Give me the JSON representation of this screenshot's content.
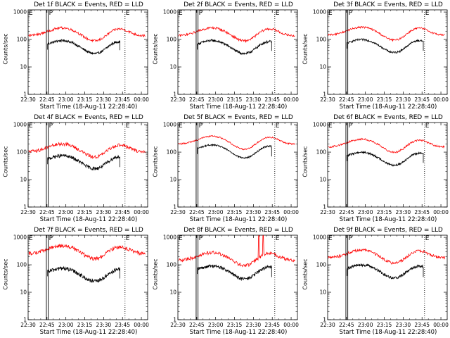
{
  "chart_data": {
    "type": "line",
    "layout": "3x3 grid",
    "xlabel": "Start Time (18-Aug-11 22:28:40)",
    "ylabel": "Counts/sec",
    "yscale": "log",
    "ylim": [
      1,
      1200
    ],
    "xlim_minutes": [
      0,
      95
    ],
    "x_tick_labels": [
      "22:30",
      "22:45",
      "23:00",
      "23:15",
      "23:30",
      "23:45",
      "00:00"
    ],
    "x_tick_minutes": [
      0,
      15,
      30,
      45,
      60,
      75,
      90
    ],
    "y_tick_labels": [
      "1",
      "10",
      "100",
      "1000"
    ],
    "y_tick_values": [
      1,
      10,
      100,
      1000
    ],
    "series_legend": [
      {
        "name": "Events",
        "color": "#000000"
      },
      {
        "name": "LLD",
        "color": "#ff0000"
      }
    ],
    "markers": [
      {
        "label": "E",
        "minute": 14.5,
        "style": "solid"
      },
      {
        "label": "P",
        "minute": 16,
        "style": "solid"
      },
      {
        "label": "E",
        "minute": 77,
        "style": "dotted"
      }
    ],
    "panels": [
      {
        "title": "Det 1f BLACK = Events, RED = LLD",
        "events_level": 55,
        "lld_level": 160,
        "noise": 0.05,
        "spike": false
      },
      {
        "title": "Det 2f BLACK = Events, RED = LLD",
        "events_level": 55,
        "lld_level": 160,
        "noise": 0.05,
        "spike": false
      },
      {
        "title": "Det 3f BLACK = Events, RED = LLD",
        "events_level": 60,
        "lld_level": 170,
        "noise": 0.04,
        "spike": false
      },
      {
        "title": "Det 4f BLACK = Events, RED = LLD",
        "events_level": 45,
        "lld_level": 120,
        "noise": 0.07,
        "spike": false
      },
      {
        "title": "Det 5f BLACK = Events, RED = LLD",
        "events_level": 110,
        "lld_level": 230,
        "noise": 0.03,
        "spike": false
      },
      {
        "title": "Det 6f BLACK = Events, RED = LLD",
        "events_level": 60,
        "lld_level": 180,
        "noise": 0.04,
        "spike": false
      },
      {
        "title": "Det 7f BLACK = Events, RED = LLD",
        "events_level": 45,
        "lld_level": 300,
        "noise": 0.08,
        "spike": false
      },
      {
        "title": "Det 8f BLACK = Events, RED = LLD",
        "events_level": 55,
        "lld_level": 170,
        "noise": 0.07,
        "spike": true
      },
      {
        "title": "Det 9f BLACK = Events, RED = LLD",
        "events_level": 60,
        "lld_level": 210,
        "noise": 0.06,
        "spike": false
      }
    ]
  }
}
